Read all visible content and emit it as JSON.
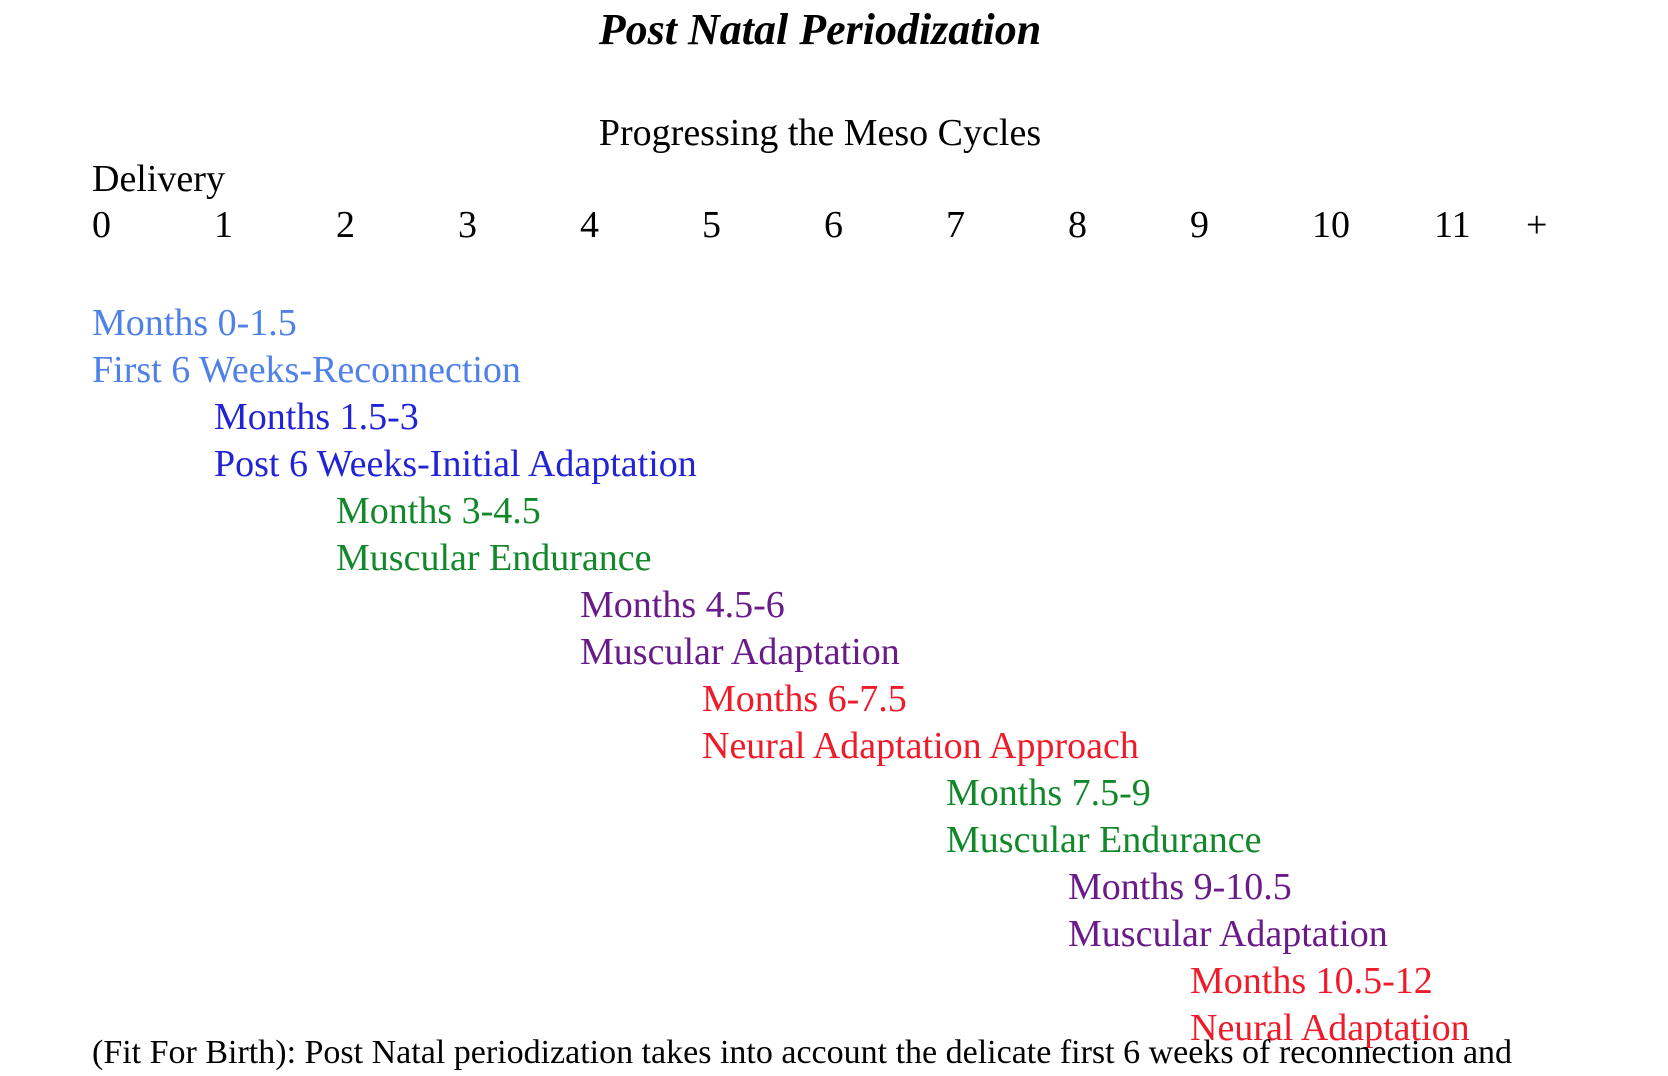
{
  "title": "Post Natal Periodization",
  "subtitle": "Progressing the Meso Cycles",
  "delivery_label": "Delivery",
  "timeline_ticks": [
    "0",
    "1",
    "2",
    "3",
    "4",
    "5",
    "6",
    "7",
    "8",
    "9",
    "10",
    "11",
    "+"
  ],
  "phases": [
    {
      "months": "Months 0-1.5",
      "name": "First 6 Weeks-Reconnection",
      "color": "#4f81e8"
    },
    {
      "months": "Months 1.5-3",
      "name": "Post 6 Weeks-Initial Adaptation",
      "color": "#2323d6"
    },
    {
      "months": "Months 3-4.5",
      "name": "Muscular Endurance",
      "color": "#12882a"
    },
    {
      "months": "Months 4.5-6",
      "name": "Muscular Adaptation",
      "color": "#6a1b8a"
    },
    {
      "months": "Months 6-7.5",
      "name": "Neural Adaptation Approach",
      "color": "#ee1c2a"
    },
    {
      "months": "Months 7.5-9",
      "name": "Muscular Endurance",
      "color": "#12882a"
    },
    {
      "months": "Months 9-10.5",
      "name": "Muscular Adaptation",
      "color": "#6a1b8a"
    },
    {
      "months": "Months 10.5-12",
      "name": "Neural Adaptation",
      "color": "#ee1c2a"
    }
  ],
  "footer_text": "(Fit For Birth): Post Natal periodization takes into account the delicate first 6 weeks of reconnection and"
}
